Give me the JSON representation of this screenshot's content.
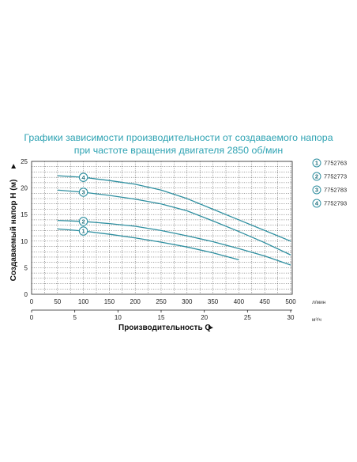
{
  "title_lines": [
    "Графики зависимости производительности от создаваемого напора",
    "при частоте вращения двигателя 2850 об/мин"
  ],
  "colors": {
    "title": "#2fa3b3",
    "curve": "#2e8fa0",
    "grid": "#333333"
  },
  "chart_data": {
    "type": "line",
    "title": "Графики зависимости производительности от создаваемого напора при частоте вращения двигателя 2850 об/мин",
    "ylabel": "Создаваемый напор H (м)",
    "ylabel_arrow": "►",
    "xlabel": "Производительность Q",
    "xlabel_arrow": "►",
    "x_primary_unit": "л/мин",
    "x_secondary_unit": "м³/ч",
    "ylim": [
      0,
      25
    ],
    "yticks": [
      0,
      5,
      10,
      15,
      20,
      25
    ],
    "x_lpm_ticks": [
      "0",
      "50",
      "100",
      "150",
      "200",
      "250",
      "300",
      "350",
      "400",
      "450",
      "500"
    ],
    "x_m3h_ticks": [
      "0",
      "5",
      "10",
      "15",
      "20",
      "25",
      "30"
    ],
    "grid": true,
    "legend_position": "right",
    "series": [
      {
        "name": "7752763",
        "marker": "1",
        "x": [
          50,
          100,
          150,
          200,
          250,
          300,
          350,
          400
        ],
        "y": [
          12.3,
          11.9,
          11.3,
          10.6,
          9.8,
          8.9,
          7.8,
          6.5
        ]
      },
      {
        "name": "7752773",
        "marker": "2",
        "x": [
          50,
          100,
          150,
          200,
          250,
          300,
          350,
          400,
          450,
          500
        ],
        "y": [
          13.9,
          13.7,
          13.3,
          12.8,
          12.0,
          11.0,
          9.9,
          8.6,
          7.2,
          5.5
        ]
      },
      {
        "name": "7752783",
        "marker": "3",
        "x": [
          50,
          100,
          150,
          200,
          250,
          300,
          350,
          400,
          450,
          500
        ],
        "y": [
          19.6,
          19.2,
          18.6,
          17.9,
          17.0,
          15.7,
          13.8,
          11.8,
          9.7,
          7.4
        ]
      },
      {
        "name": "7752793",
        "marker": "4",
        "x": [
          50,
          100,
          150,
          200,
          250,
          300,
          350,
          400,
          450,
          500
        ],
        "y": [
          22.3,
          22.0,
          21.4,
          20.7,
          19.6,
          18.0,
          16.0,
          14.0,
          12.0,
          10.0
        ]
      }
    ]
  }
}
